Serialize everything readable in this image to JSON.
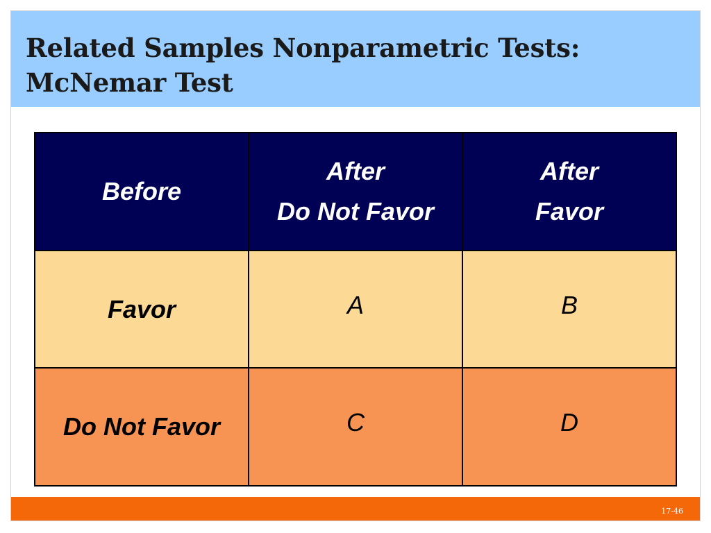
{
  "slide": {
    "title_line1": "Related Samples Nonparametric Tests:",
    "title_line2": "McNemar Test",
    "page_number": "17-46"
  },
  "table": {
    "header": {
      "before": "Before",
      "col1_line1": "After",
      "col1_line2": "Do Not Favor",
      "col2_line1": "After",
      "col2_line2": "Favor"
    },
    "rows": [
      {
        "label": "Favor",
        "cells": [
          "A",
          "B"
        ]
      },
      {
        "label": "Do Not Favor",
        "cells": [
          "C",
          "D"
        ]
      }
    ]
  },
  "colors": {
    "title_bar": "#99ccff",
    "header_bg": "#000055",
    "row_favor_bg": "#fcd994",
    "row_do_not_favor_bg": "#f79454",
    "footer_bar": "#f5680a"
  }
}
